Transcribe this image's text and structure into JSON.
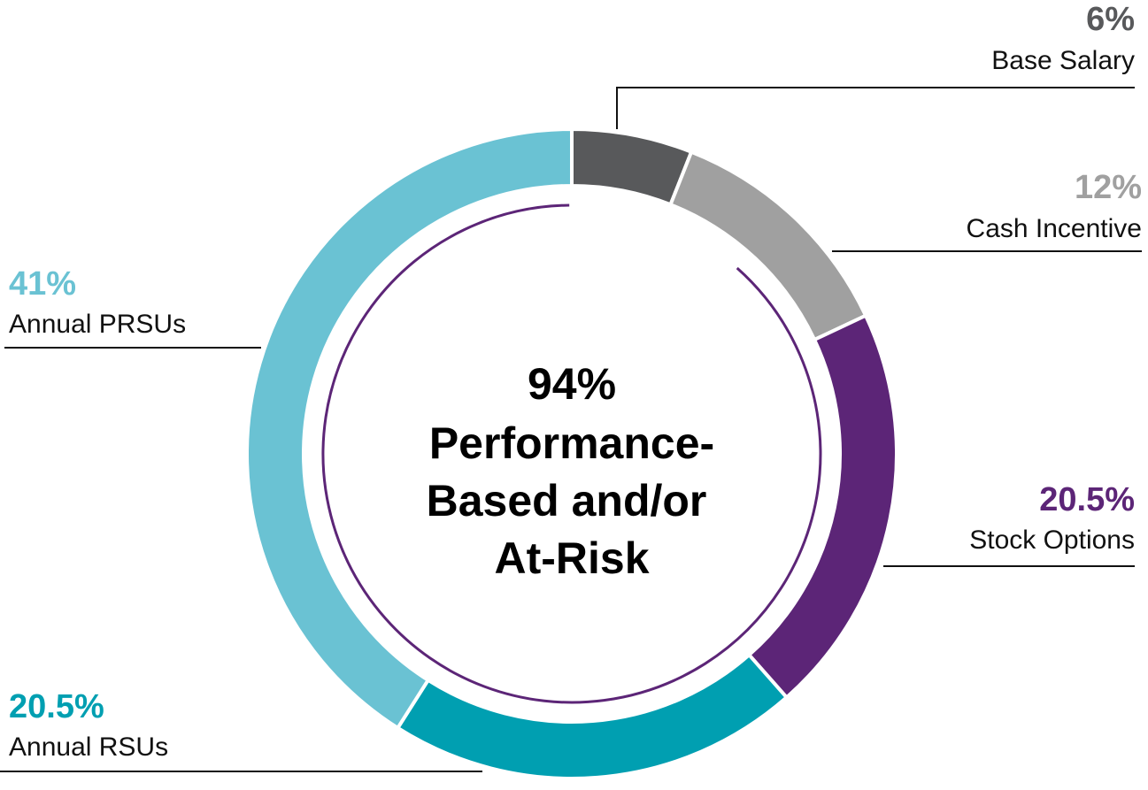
{
  "chart_data": {
    "type": "donut",
    "categories": [
      "Base Salary",
      "Cash Incentive",
      "Stock Options",
      "Annual RSUs",
      "Annual PRSUs"
    ],
    "values": [
      6,
      12,
      20.5,
      20.5,
      41
    ],
    "value_labels": [
      "6%",
      "12%",
      "20.5%",
      "20.5%",
      "41%"
    ],
    "colors": [
      "#58595b",
      "#a0a0a0",
      "#5c2577",
      "#009fb1",
      "#6ac2d3"
    ],
    "center_value": 94,
    "center_value_label": "94%",
    "center_lines": [
      "Performance-",
      "Based and/or",
      "At-Risk"
    ],
    "center_arc_color": "#5c2577"
  }
}
